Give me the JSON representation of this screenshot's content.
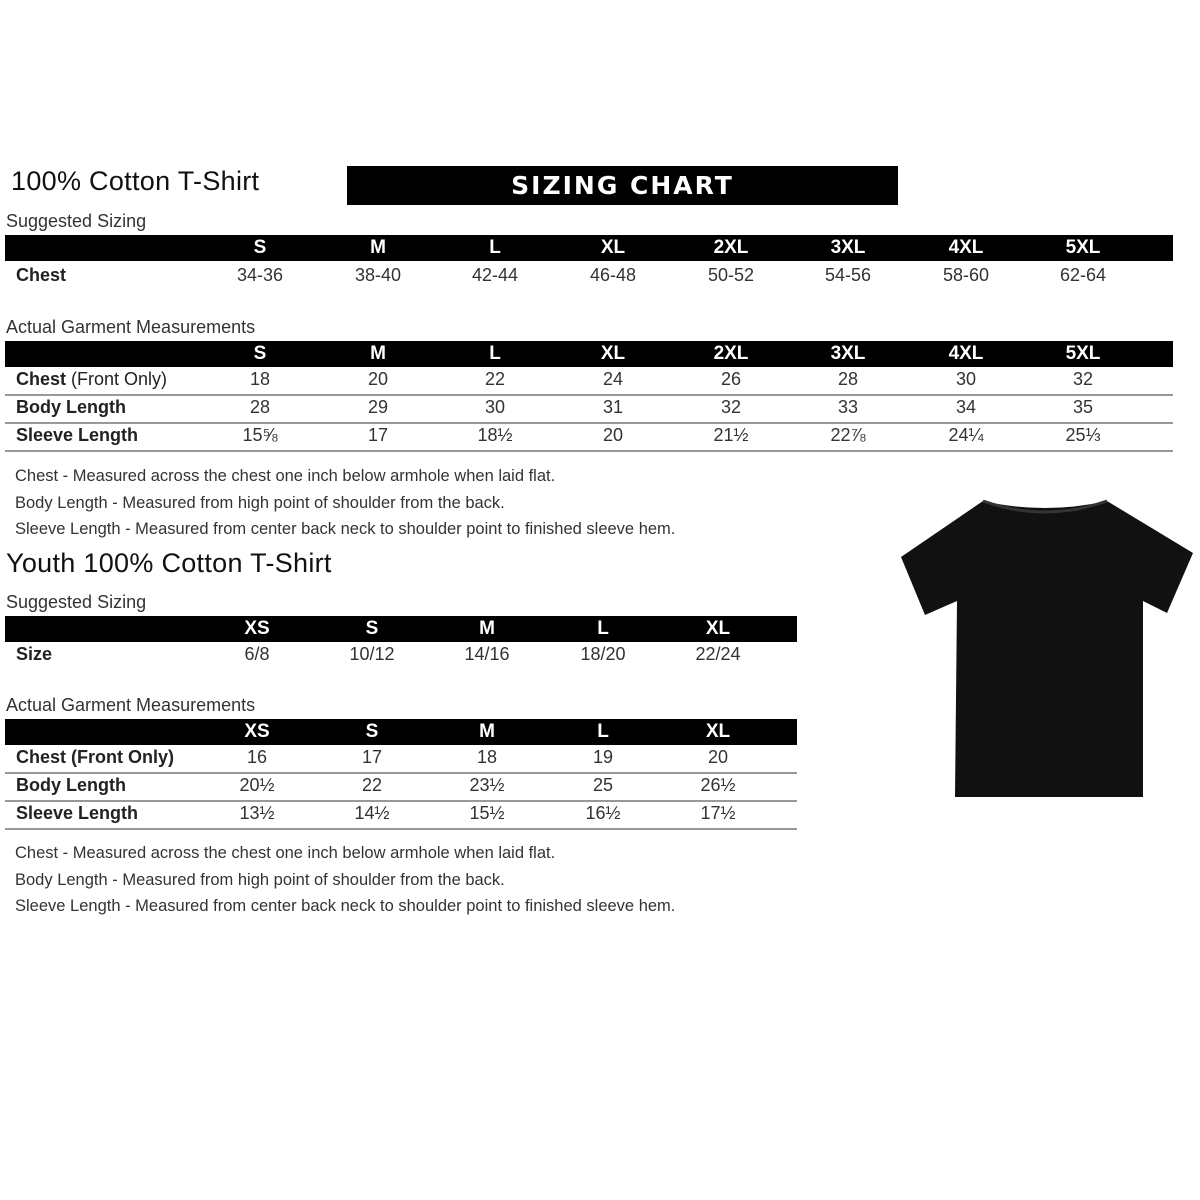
{
  "adult": {
    "title": "100% Cotton T-Shirt",
    "banner": "SIZING CHART",
    "suggested_label": "Suggested Sizing",
    "sizes": [
      "S",
      "M",
      "L",
      "XL",
      "2XL",
      "3XL",
      "4XL",
      "5XL"
    ],
    "suggested_rows": [
      {
        "label": "Chest",
        "values": [
          "34-36",
          "38-40",
          "42-44",
          "46-48",
          "50-52",
          "54-56",
          "58-60",
          "62-64"
        ]
      }
    ],
    "actual_label": "Actual Garment Measurements",
    "actual_rows": [
      {
        "label": "Chest",
        "label_extra": " (Front Only)",
        "values": [
          "18",
          "20",
          "22",
          "24",
          "26",
          "28",
          "30",
          "32"
        ]
      },
      {
        "label": "Body Length",
        "label_extra": "",
        "values": [
          "28",
          "29",
          "30",
          "31",
          "32",
          "33",
          "34",
          "35"
        ]
      },
      {
        "label": "Sleeve Length",
        "label_extra": "",
        "values": [
          "15⅝",
          "17",
          "18½",
          "20",
          "21½",
          "22⅞",
          "24¼",
          "25⅓"
        ]
      }
    ],
    "notes": [
      "Chest - Measured across the chest one inch below armhole when laid flat.",
      "Body Length - Measured from high point of shoulder from the back.",
      "Sleeve Length - Measured from center back neck to shoulder point to finished sleeve hem."
    ]
  },
  "youth": {
    "title": "Youth 100% Cotton T-Shirt",
    "suggested_label": "Suggested Sizing",
    "sizes": [
      "XS",
      "S",
      "M",
      "L",
      "XL"
    ],
    "suggested_rows": [
      {
        "label": "Size",
        "values": [
          "6/8",
          "10/12",
          "14/16",
          "18/20",
          "22/24"
        ]
      }
    ],
    "actual_label": "Actual Garment Measurements",
    "actual_rows": [
      {
        "label": "Chest (Front Only)",
        "label_extra": "",
        "values": [
          "16",
          "17",
          "18",
          "19",
          "20"
        ]
      },
      {
        "label": "Body Length",
        "label_extra": "",
        "values": [
          "20½",
          "22",
          "23½",
          "25",
          "26½"
        ]
      },
      {
        "label": "Sleeve Length",
        "label_extra": "",
        "values": [
          "13½",
          "14½",
          "15½",
          "16½",
          "17½"
        ]
      }
    ],
    "notes": [
      "Chest - Measured across the chest one inch below armhole when laid flat.",
      "Body Length - Measured from high point of shoulder from the back.",
      "Sleeve Length - Measured from center back neck to shoulder point to finished sleeve hem."
    ]
  },
  "tshirt_color": "#111111"
}
